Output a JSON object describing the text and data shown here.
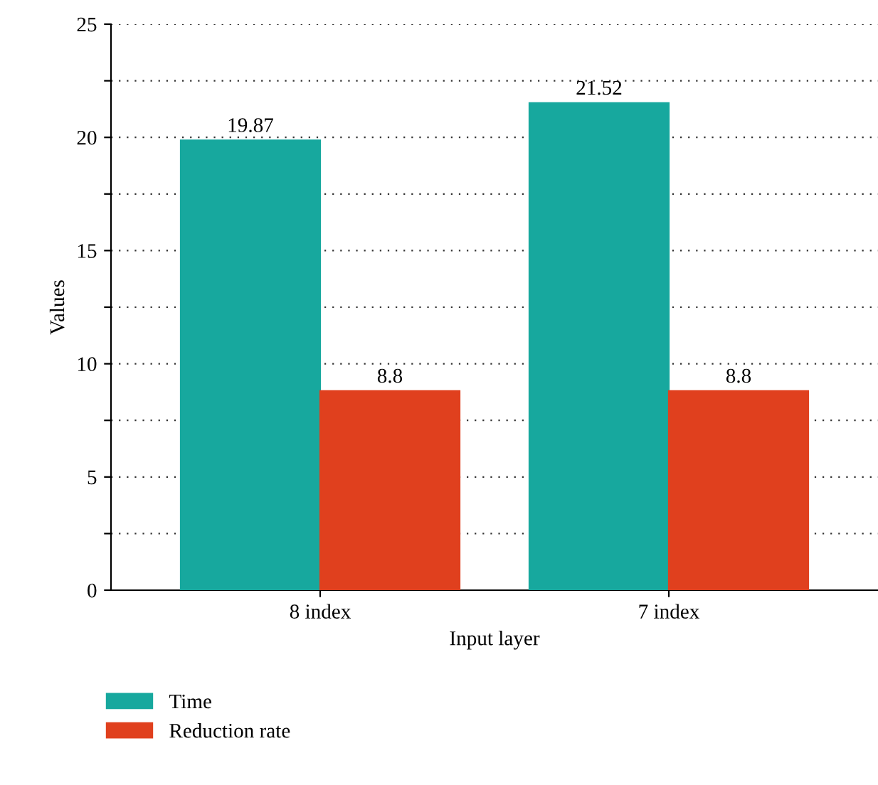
{
  "chart_data": {
    "type": "bar",
    "xlabel": "Input layer",
    "ylabel": "Values",
    "categories": [
      "8 index",
      "7 index"
    ],
    "series": [
      {
        "name": "Time",
        "color": "#17a89e",
        "values": [
          19.87,
          21.52
        ]
      },
      {
        "name": "Reduction rate",
        "color": "#e0401e",
        "values": [
          8.8,
          8.8
        ]
      }
    ],
    "ylim": [
      0,
      25
    ],
    "yticks": [
      0,
      {
        "value": 2.5,
        "label": null
      },
      5,
      {
        "value": 7.5,
        "label": null
      },
      10,
      {
        "value": 12.5,
        "label": null
      },
      15,
      {
        "value": 17.5,
        "label": null
      },
      20,
      {
        "value": 22.5,
        "label": null
      },
      25
    ],
    "grid": "y",
    "legend": "bottom left",
    "data_labels": true
  }
}
